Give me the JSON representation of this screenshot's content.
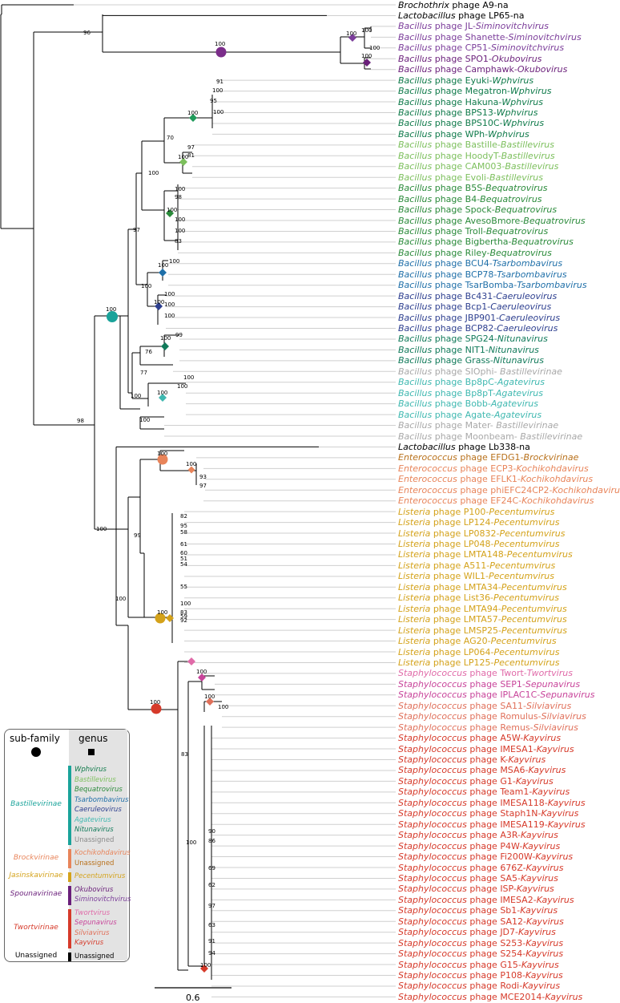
{
  "tips": [
    {
      "host": "Brochothrix",
      "rest": " phage A9-",
      "genus": "na",
      "color": "#000000",
      "hostItalic": true
    },
    {
      "host": "Lactobacillus",
      "rest": " phage LP65-",
      "genus": "na",
      "color": "#000000",
      "hostItalic": true
    },
    {
      "host": "Bacillus",
      "rest": " phage JL-",
      "genus": "Siminovitchvirus",
      "color": "#7b3d9a"
    },
    {
      "host": "Bacillus",
      "rest": " phage Shanette-",
      "genus": "Siminovitchvirus",
      "color": "#7b3d9a"
    },
    {
      "host": "Bacillus",
      "rest": " phage CP51-",
      "genus": "Siminovitchvirus",
      "color": "#7b3d9a"
    },
    {
      "host": "Bacillus",
      "rest": " phage SPO1-",
      "genus": "Okubovirus",
      "color": "#6a1f7a"
    },
    {
      "host": "Bacillus",
      "rest": " phage Camphawk-",
      "genus": "Okubovirus",
      "color": "#6a1f7a"
    },
    {
      "host": "Bacillus",
      "rest": " phage Eyuki-",
      "genus": "Wphvirus",
      "color": "#0f7a4a"
    },
    {
      "host": "Bacillus",
      "rest": " phage Megatron-",
      "genus": "Wphvirus",
      "color": "#0f7a4a"
    },
    {
      "host": "Bacillus",
      "rest": " phage Hakuna-",
      "genus": "Wphvirus",
      "color": "#0f7a4a"
    },
    {
      "host": "Bacillus",
      "rest": " phage BPS13-",
      "genus": "Wphvirus",
      "color": "#0f7a4a"
    },
    {
      "host": "Bacillus",
      "rest": " phage BPS10C-",
      "genus": "Wphvirus",
      "color": "#0f7a4a"
    },
    {
      "host": "Bacillus",
      "rest": " phage WPh-",
      "genus": "Wphvirus",
      "color": "#0f7a4a"
    },
    {
      "host": "Bacillus",
      "rest": " phage Bastille-",
      "genus": "Bastillevirus",
      "color": "#7cbf5c"
    },
    {
      "host": "Bacillus",
      "rest": " phage HoodyT-",
      "genus": "Bastillevirus",
      "color": "#7cbf5c"
    },
    {
      "host": "Bacillus",
      "rest": " phage CAM003-",
      "genus": "Bastillevirus",
      "color": "#7cbf5c"
    },
    {
      "host": "Bacillus",
      "rest": " phage Evoli-",
      "genus": "Bastillevirus",
      "color": "#7cbf5c"
    },
    {
      "host": "Bacillus",
      "rest": " phage B5S-",
      "genus": "Bequatrovirus",
      "color": "#2a8a3a"
    },
    {
      "host": "Bacillus",
      "rest": " phage B4-",
      "genus": "Bequatrovirus",
      "color": "#2a8a3a"
    },
    {
      "host": "Bacillus",
      "rest": " phage Spock-",
      "genus": "Bequatrovirus",
      "color": "#2a8a3a"
    },
    {
      "host": "Bacillus",
      "rest": " phage AvesoBmore-",
      "genus": "Bequatrovirus",
      "color": "#2a8a3a"
    },
    {
      "host": "Bacillus",
      "rest": " phage Troll-",
      "genus": "Bequatrovirus",
      "color": "#2a8a3a"
    },
    {
      "host": "Bacillus",
      "rest": " phage Bigbertha-",
      "genus": "Bequatrovirus",
      "color": "#2a8a3a"
    },
    {
      "host": "Bacillus",
      "rest": " phage Riley-",
      "genus": "Bequatrovirus",
      "color": "#2a8a3a"
    },
    {
      "host": "Bacillus",
      "rest": " phage BCU4-",
      "genus": "Tsarbombavirus",
      "color": "#1f6fa8"
    },
    {
      "host": "Bacillus",
      "rest": " phage BCP78-",
      "genus": "Tsarbombavirus",
      "color": "#1f6fa8"
    },
    {
      "host": "Bacillus",
      "rest": " phage TsarBomba-",
      "genus": "Tsarbombavirus",
      "color": "#1f6fa8"
    },
    {
      "host": "Bacillus",
      "rest": " phage Bc431-",
      "genus": "Caeruleovirus",
      "color": "#2d3f8f"
    },
    {
      "host": "Bacillus",
      "rest": " phage Bcp1-",
      "genus": "Caeruleovirus",
      "color": "#2d3f8f"
    },
    {
      "host": "Bacillus",
      "rest": " phage JBP901-",
      "genus": "Caeruleovirus",
      "color": "#2d3f8f"
    },
    {
      "host": "Bacillus",
      "rest": " phage BCP82-",
      "genus": "Caeruleovirus",
      "color": "#2d3f8f"
    },
    {
      "host": "Bacillus",
      "rest": " phage SPG24-",
      "genus": "Nitunavirus",
      "color": "#117a5a"
    },
    {
      "host": "Bacillus",
      "rest": " phage NIT1-",
      "genus": "Nitunavirus",
      "color": "#117a5a"
    },
    {
      "host": "Bacillus",
      "rest": " phage Grass-",
      "genus": "Nitunavirus",
      "color": "#117a5a"
    },
    {
      "host": "Bacillus",
      "rest": " phage SIOphi- ",
      "genus": "Bastillevirinae",
      "color": "#a8a8a8"
    },
    {
      "host": "Bacillus",
      "rest": " phage Bp8pC-",
      "genus": "Agatevirus",
      "color": "#3fb8b0"
    },
    {
      "host": "Bacillus",
      "rest": " phage Bp8pT-",
      "genus": "Agatevirus",
      "color": "#3fb8b0"
    },
    {
      "host": "Bacillus",
      "rest": " phage Bobb-",
      "genus": "Agatevirus",
      "color": "#3fb8b0"
    },
    {
      "host": "Bacillus",
      "rest": " phage Agate-",
      "genus": "Agatevirus",
      "color": "#3fb8b0"
    },
    {
      "host": "Bacillus",
      "rest": " phage Mater- ",
      "genus": "Bastillevirinae",
      "color": "#a8a8a8"
    },
    {
      "host": "Bacillus",
      "rest": " phage Moonbeam- ",
      "genus": "Bastillevirinae",
      "color": "#a8a8a8"
    },
    {
      "host": "Lactobacillus",
      "rest": " phage Lb338-",
      "genus": "na",
      "color": "#000000",
      "hostItalic": true
    },
    {
      "host": "Enterococcus",
      "rest": " phage EFDG1-",
      "genus": "Brockvirinae",
      "color": "#b8701a"
    },
    {
      "host": "Enterococcus",
      "rest": " phage ECP3-",
      "genus": "Kochikohdavirus",
      "color": "#e8845a"
    },
    {
      "host": "Enterococcus",
      "rest": " phage EFLK1-",
      "genus": "Kochikohdavirus",
      "color": "#e8845a"
    },
    {
      "host": "Enterococcus",
      "rest": " phage phiEFC24CP2-",
      "genus": "Kochikohdavirus",
      "color": "#e8845a"
    },
    {
      "host": "Enterococcus",
      "rest": " phage EF24C-",
      "genus": "Kochikohdavirus",
      "color": "#e8845a"
    },
    {
      "host": "Listeria",
      "rest": " phage P100-",
      "genus": "Pecentumvirus",
      "color": "#d4a21a"
    },
    {
      "host": "Listeria",
      "rest": " phage LP124-",
      "genus": "Pecentumvirus",
      "color": "#d4a21a"
    },
    {
      "host": "Listeria",
      "rest": " phage LP0832-",
      "genus": "Pecentumvirus",
      "color": "#d4a21a"
    },
    {
      "host": "Listeria",
      "rest": " phage LP048-",
      "genus": "Pecentumvirus",
      "color": "#d4a21a"
    },
    {
      "host": "Listeria",
      "rest": " phage LMTA148-",
      "genus": "Pecentumvirus",
      "color": "#d4a21a"
    },
    {
      "host": "Listeria",
      "rest": " phage A511-",
      "genus": "Pecentumvirus",
      "color": "#d4a21a"
    },
    {
      "host": "Listeria",
      "rest": " phage WIL1-",
      "genus": "Pecentumvirus",
      "color": "#d4a21a"
    },
    {
      "host": "Listeria",
      "rest": " phage LMTA34-",
      "genus": "Pecentumvirus",
      "color": "#d4a21a"
    },
    {
      "host": "Listeria",
      "rest": " phage List36-",
      "genus": "Pecentumvirus",
      "color": "#d4a21a"
    },
    {
      "host": "Listeria",
      "rest": " phage LMTA94-",
      "genus": "Pecentumvirus",
      "color": "#d4a21a"
    },
    {
      "host": "Listeria",
      "rest": " phage LMTA57-",
      "genus": "Pecentumvirus",
      "color": "#d4a21a"
    },
    {
      "host": "Listeria",
      "rest": " phage LMSP25-",
      "genus": "Pecentumvirus",
      "color": "#d4a21a"
    },
    {
      "host": "Listeria",
      "rest": " phage AG20-",
      "genus": "Pecentumvirus",
      "color": "#d4a21a"
    },
    {
      "host": "Listeria",
      "rest": " phage LP064-",
      "genus": "Pecentumvirus",
      "color": "#d4a21a"
    },
    {
      "host": "Listeria",
      "rest": " phage LP125-",
      "genus": "Pecentumvirus",
      "color": "#d4a21a"
    },
    {
      "host": "Staphylococcus",
      "rest": " phage Twort-",
      "genus": "Twortvirus",
      "color": "#e06aa8"
    },
    {
      "host": "Staphylococcus",
      "rest": " phage SEP1-",
      "genus": "Sepunavirus",
      "color": "#c8449a"
    },
    {
      "host": "Staphylococcus",
      "rest": " phage IPLAC1C-",
      "genus": "Sepunavirus",
      "color": "#c8449a"
    },
    {
      "host": "Staphylococcus",
      "rest": " phage SA11-",
      "genus": "Silviavirus",
      "color": "#e0705a"
    },
    {
      "host": "Staphylococcus",
      "rest": " phage Romulus-",
      "genus": "Silviavirus",
      "color": "#e0705a"
    },
    {
      "host": "Staphylococcus",
      "rest": " phage Remus-",
      "genus": "Silviavirus",
      "color": "#e0705a"
    },
    {
      "host": "Staphylococcus",
      "rest": " phage A5W-",
      "genus": "Kayvirus",
      "color": "#d63a2a"
    },
    {
      "host": "Staphylococcus",
      "rest": " phage IMESA1-",
      "genus": "Kayvirus",
      "color": "#d63a2a"
    },
    {
      "host": "Staphylococcus",
      "rest": " phage K-",
      "genus": "Kayvirus",
      "color": "#d63a2a"
    },
    {
      "host": "Staphylococcus",
      "rest": " phage MSA6-",
      "genus": "Kayvirus",
      "color": "#d63a2a"
    },
    {
      "host": "Staphylococcus",
      "rest": " phage G1-",
      "genus": "Kayvirus",
      "color": "#d63a2a"
    },
    {
      "host": "Staphylococcus",
      "rest": " phage Team1-",
      "genus": "Kayvirus",
      "color": "#d63a2a"
    },
    {
      "host": "Staphylococcus",
      "rest": " phage IMESA118-",
      "genus": "Kayvirus",
      "color": "#d63a2a"
    },
    {
      "host": "Staphylococcus",
      "rest": " phage Staph1N-",
      "genus": "Kayvirus",
      "color": "#d63a2a"
    },
    {
      "host": "Staphylococcus",
      "rest": " phage IMESA119-",
      "genus": "Kayvirus",
      "color": "#d63a2a"
    },
    {
      "host": "Staphylococcus",
      "rest": " phage A3R-",
      "genus": "Kayvirus",
      "color": "#d63a2a"
    },
    {
      "host": "Staphylococcus",
      "rest": " phage P4W-",
      "genus": "Kayvirus",
      "color": "#d63a2a"
    },
    {
      "host": "Staphylococcus",
      "rest": " phage Fi200W-",
      "genus": "Kayvirus",
      "color": "#d63a2a"
    },
    {
      "host": "Staphylococcus",
      "rest": " phage 676Z-",
      "genus": "Kayvirus",
      "color": "#d63a2a"
    },
    {
      "host": "Staphylococcus",
      "rest": " phage SA5-",
      "genus": "Kayvirus",
      "color": "#d63a2a"
    },
    {
      "host": "Staphylococcus",
      "rest": " phage ISP-",
      "genus": "Kayvirus",
      "color": "#d63a2a"
    },
    {
      "host": "Staphylococcus",
      "rest": " phage IMESA2-",
      "genus": "Kayvirus",
      "color": "#d63a2a"
    },
    {
      "host": "Staphylococcus",
      "rest": " phage Sb1-",
      "genus": "Kayvirus",
      "color": "#d63a2a"
    },
    {
      "host": "Staphylococcus",
      "rest": " phage SA12-",
      "genus": "Kayvirus",
      "color": "#d63a2a"
    },
    {
      "host": "Staphylococcus",
      "rest": " phage JD7-",
      "genus": "Kayvirus",
      "color": "#d63a2a"
    },
    {
      "host": "Staphylococcus",
      "rest": " phage S253-",
      "genus": "Kayvirus",
      "color": "#d63a2a"
    },
    {
      "host": "Staphylococcus",
      "rest": " phage S254-",
      "genus": "Kayvirus",
      "color": "#d63a2a"
    },
    {
      "host": "Staphylococcus",
      "rest": " phage G15-",
      "genus": "Kayvirus",
      "color": "#d63a2a"
    },
    {
      "host": "Staphylococcus",
      "rest": " phage P108-",
      "genus": "Kayvirus",
      "color": "#d63a2a"
    },
    {
      "host": "Staphylococcus",
      "rest": " phage Rodi-",
      "genus": "Kayvirus",
      "color": "#d63a2a"
    },
    {
      "host": "Staphylococcus",
      "rest": " phage MCE2014-",
      "genus": "Kayvirus",
      "color": "#d63a2a"
    }
  ],
  "bootstrap": {
    "root_96": "96",
    "spounavirinae_100": "100",
    "siminovitch_100": "100",
    "siminovitch_inner_100": "100",
    "siminovitch_inner2_100": "100",
    "okubo_100": "100",
    "wph_91": "91",
    "wph_100a": "100",
    "wph_95": "95",
    "wph_100b": "100",
    "wph_100": "100",
    "node_70": "70",
    "bast_97": "97",
    "bast_81": "81",
    "bast_100": "100",
    "node_100a": "100",
    "beq_100a": "100",
    "beq_98": "98",
    "beq_100": "100",
    "beq_100b": "100",
    "beq_100c": "100",
    "beq_83": "83",
    "node_97": "97",
    "tsar_100": "100",
    "tsar_100b": "100",
    "node_100b": "100",
    "caer_100": "100",
    "caer_100a": "100",
    "caer_100b": "100",
    "caer_100c": "100",
    "nit_100": "100",
    "nit_99": "99",
    "node_76": "76",
    "node_77": "77",
    "node_100c": "100",
    "aga_100": "100",
    "aga_100a": "100",
    "aga_100b": "100",
    "node_100d": "100",
    "node_98": "98",
    "bast_sub_100": "100",
    "brock_100": "100",
    "koch_100": "100",
    "koch_93": "93",
    "koch_97": "97",
    "node_99": "99",
    "lis_82": "82",
    "lis_95": "95",
    "lis_58": "58",
    "lis_61": "61",
    "lis_60": "60",
    "lis_51": "51",
    "lis_54": "54",
    "lis_55": "55",
    "lis_100": "100",
    "lis_83": "83",
    "lis_59": "59",
    "lis_92": "92",
    "jas_100": "100",
    "node_100e": "100",
    "node_100f": "100",
    "sep_100": "100",
    "sil_100": "100",
    "sil_100b": "100",
    "twort_100": "100",
    "node_83": "83",
    "node_100g": "100",
    "kay_90": "90",
    "kay_86": "86",
    "kay_69": "69",
    "kay_62": "62",
    "kay_97": "97",
    "kay_63": "63",
    "kay_91": "91",
    "kay_94": "94",
    "kay_100": "100"
  },
  "scale": {
    "label": "0.6"
  },
  "legend": {
    "subfamily_header": "sub-family",
    "genus_header": "genus",
    "groups": [
      {
        "subfamily": "Bastillevirinae",
        "color": "#1aa39a",
        "genera": [
          {
            "name": "Wphvirus",
            "color": "#0f7a4a"
          },
          {
            "name": "Bastillevirus",
            "color": "#7cbf5c"
          },
          {
            "name": "Bequatrovirus",
            "color": "#2a8a3a"
          },
          {
            "name": "Tsarbombavirus",
            "color": "#1f6fa8"
          },
          {
            "name": "Caeruleovirus",
            "color": "#2d3f8f"
          },
          {
            "name": "Agatevirus",
            "color": "#3fb8b0"
          },
          {
            "name": "Nitunavirus",
            "color": "#117a5a"
          },
          {
            "name": "Unassigned",
            "color": "#8a8a8a"
          }
        ]
      },
      {
        "subfamily": "Brockvirinae",
        "color": "#e8845a",
        "genera": [
          {
            "name": "Kochikohdavirus",
            "color": "#e8845a"
          },
          {
            "name": "Unassigned",
            "color": "#b8701a"
          }
        ]
      },
      {
        "subfamily": "Jasinskavirinae",
        "color": "#d4a21a",
        "genera": [
          {
            "name": "Pecentumvirus",
            "color": "#d4a21a"
          }
        ]
      },
      {
        "subfamily": "Spounavirinae",
        "color": "#6a1f7a",
        "genera": [
          {
            "name": "Okubovirus",
            "color": "#6a1f7a"
          },
          {
            "name": "Siminovitchvirus",
            "color": "#7b3d9a"
          }
        ]
      },
      {
        "subfamily": "Twortvirinae",
        "color": "#d63a2a",
        "genera": [
          {
            "name": "Twortvirus",
            "color": "#e06aa8"
          },
          {
            "name": "Sepunavirus",
            "color": "#c8449a"
          },
          {
            "name": "Silviavirus",
            "color": "#e0705a"
          },
          {
            "name": "Kayvirus",
            "color": "#d63a2a"
          }
        ]
      },
      {
        "subfamily": "Unassigned",
        "color": "#000000",
        "genera": [
          {
            "name": "Unassigned",
            "color": "#000000"
          }
        ]
      }
    ]
  }
}
